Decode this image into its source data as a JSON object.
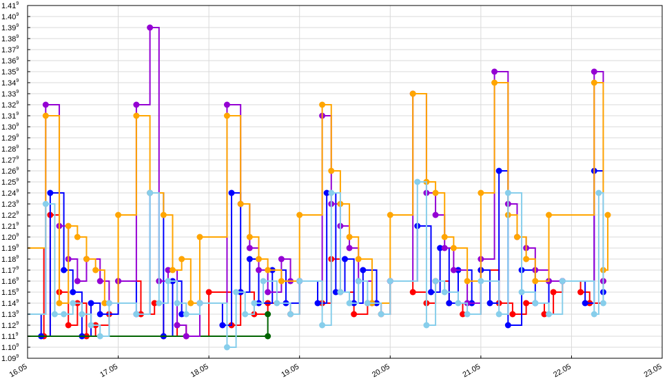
{
  "chart_data": {
    "type": "line",
    "step": "post",
    "grid": true,
    "legend": "none",
    "x_ticks": [
      "16.05",
      "17.05",
      "18.05",
      "19.05",
      "20.05",
      "21.05",
      "22.05",
      "23.05"
    ],
    "xlim": [
      0,
      7
    ],
    "y_ticks": [
      {
        "base": "1.09",
        "exp": "9"
      },
      {
        "base": "1.10",
        "exp": "9"
      },
      {
        "base": "1.11",
        "exp": "9"
      },
      {
        "base": "1.12",
        "exp": "9"
      },
      {
        "base": "1.13",
        "exp": "9"
      },
      {
        "base": "1.14",
        "exp": "9"
      },
      {
        "base": "1.15",
        "exp": "9"
      },
      {
        "base": "1.16",
        "exp": "9"
      },
      {
        "base": "1.17",
        "exp": "9"
      },
      {
        "base": "1.18",
        "exp": "9"
      },
      {
        "base": "1.19",
        "exp": "9"
      },
      {
        "base": "1.20",
        "exp": "9"
      },
      {
        "base": "1.21",
        "exp": "9"
      },
      {
        "base": "1.22",
        "exp": "9"
      },
      {
        "base": "1.23",
        "exp": "9"
      },
      {
        "base": "1.24",
        "exp": "9"
      },
      {
        "base": "1.25",
        "exp": "9"
      },
      {
        "base": "1.26",
        "exp": "9"
      },
      {
        "base": "1.27",
        "exp": "9"
      },
      {
        "base": "1.28",
        "exp": "9"
      },
      {
        "base": "1.29",
        "exp": "9"
      },
      {
        "base": "1.30",
        "exp": "9"
      },
      {
        "base": "1.31",
        "exp": "9"
      },
      {
        "base": "1.32",
        "exp": "9"
      },
      {
        "base": "1.33",
        "exp": "9"
      },
      {
        "base": "1.34",
        "exp": "9"
      },
      {
        "base": "1.35",
        "exp": "9"
      },
      {
        "base": "1.36",
        "exp": "9"
      },
      {
        "base": "1.37",
        "exp": "9"
      },
      {
        "base": "1.38",
        "exp": "9"
      },
      {
        "base": "1.39",
        "exp": "9"
      },
      {
        "base": "1.40",
        "exp": "9"
      },
      {
        "base": "1.41",
        "exp": "9"
      }
    ],
    "ylim": [
      1.09,
      1.41
    ],
    "y_multiplier_exp": 9,
    "series": [
      {
        "color": "#ff0000",
        "points": [
          [
            0,
            1.19
          ],
          [
            0.18,
            1.11
          ],
          [
            0.25,
            1.22
          ],
          [
            0.35,
            1.15
          ],
          [
            0.45,
            1.12
          ],
          [
            0.55,
            1.14
          ],
          [
            0.65,
            1.11
          ],
          [
            0.75,
            1.12
          ],
          [
            0.9,
            1.13
          ],
          [
            1.0,
            1.16
          ],
          [
            1.25,
            1.13
          ],
          [
            1.4,
            1.14
          ],
          [
            1.5,
            1.11
          ],
          [
            1.65,
            1.12
          ],
          [
            1.75,
            1.11
          ],
          [
            2.0,
            1.15
          ],
          [
            2.25,
            1.12
          ],
          [
            2.35,
            1.15
          ],
          [
            2.5,
            1.13
          ],
          [
            2.65,
            1.14
          ],
          [
            2.9,
            1.13
          ],
          [
            3.0,
            1.16
          ],
          [
            3.25,
            1.14
          ],
          [
            3.35,
            1.18
          ],
          [
            3.45,
            1.15
          ],
          [
            3.6,
            1.13
          ],
          [
            3.75,
            1.14
          ],
          [
            3.9,
            1.13
          ],
          [
            4.0,
            1.16
          ],
          [
            4.25,
            1.15
          ],
          [
            4.4,
            1.14
          ],
          [
            4.5,
            1.16
          ],
          [
            4.65,
            1.14
          ],
          [
            4.8,
            1.13
          ],
          [
            5.0,
            1.17
          ],
          [
            5.2,
            1.14
          ],
          [
            5.35,
            1.13
          ],
          [
            5.5,
            1.14
          ],
          [
            5.7,
            1.13
          ],
          [
            5.8,
            1.15
          ],
          [
            5.9,
            1.16
          ],
          [
            6.1,
            1.15
          ],
          [
            6.2,
            1.14
          ],
          [
            6.35,
            1.16
          ]
        ]
      },
      {
        "color": "#0000ff",
        "points": [
          [
            0,
            1.13
          ],
          [
            0.15,
            1.11
          ],
          [
            0.25,
            1.24
          ],
          [
            0.4,
            1.17
          ],
          [
            0.5,
            1.15
          ],
          [
            0.6,
            1.11
          ],
          [
            0.7,
            1.14
          ],
          [
            0.8,
            1.13
          ],
          [
            1.0,
            1.16
          ],
          [
            1.2,
            1.13
          ],
          [
            1.35,
            1.24
          ],
          [
            1.5,
            1.11
          ],
          [
            1.6,
            1.16
          ],
          [
            1.7,
            1.13
          ],
          [
            1.9,
            1.14
          ],
          [
            2.15,
            1.12
          ],
          [
            2.25,
            1.24
          ],
          [
            2.35,
            1.15
          ],
          [
            2.45,
            1.18
          ],
          [
            2.55,
            1.14
          ],
          [
            2.7,
            1.17
          ],
          [
            2.85,
            1.14
          ],
          [
            3.0,
            1.16
          ],
          [
            3.2,
            1.14
          ],
          [
            3.3,
            1.24
          ],
          [
            3.4,
            1.15
          ],
          [
            3.5,
            1.18
          ],
          [
            3.6,
            1.14
          ],
          [
            3.7,
            1.17
          ],
          [
            3.85,
            1.14
          ],
          [
            4.0,
            1.16
          ],
          [
            4.3,
            1.21
          ],
          [
            4.45,
            1.15
          ],
          [
            4.55,
            1.19
          ],
          [
            4.65,
            1.14
          ],
          [
            4.75,
            1.17
          ],
          [
            4.9,
            1.14
          ],
          [
            5.0,
            1.17
          ],
          [
            5.1,
            1.14
          ],
          [
            5.2,
            1.26
          ],
          [
            5.3,
            1.12
          ],
          [
            5.45,
            1.17
          ],
          [
            5.6,
            1.14
          ],
          [
            5.75,
            1.16
          ],
          [
            5.9,
            1.16
          ],
          [
            6.15,
            1.14
          ],
          [
            6.25,
            1.26
          ],
          [
            6.35,
            1.15
          ]
        ]
      },
      {
        "color": "#006400",
        "points": [
          [
            0,
            1.11
          ],
          [
            2.65,
            1.11
          ],
          [
            2.65,
            1.13
          ]
        ]
      },
      {
        "color": "#9400d3",
        "points": [
          [
            0,
            1.13
          ],
          [
            0.2,
            1.32
          ],
          [
            0.35,
            1.21
          ],
          [
            0.45,
            1.18
          ],
          [
            0.55,
            1.16
          ],
          [
            0.65,
            1.18
          ],
          [
            0.8,
            1.16
          ],
          [
            0.9,
            1.14
          ],
          [
            1.0,
            1.16
          ],
          [
            1.2,
            1.32
          ],
          [
            1.35,
            1.39
          ],
          [
            1.45,
            1.16
          ],
          [
            1.55,
            1.17
          ],
          [
            1.65,
            1.12
          ],
          [
            1.75,
            1.11
          ],
          [
            1.9,
            1.14
          ],
          [
            2.2,
            1.32
          ],
          [
            2.35,
            1.23
          ],
          [
            2.45,
            1.19
          ],
          [
            2.55,
            1.17
          ],
          [
            2.65,
            1.15
          ],
          [
            2.8,
            1.18
          ],
          [
            2.9,
            1.16
          ],
          [
            3.0,
            1.16
          ],
          [
            3.25,
            1.31
          ],
          [
            3.35,
            1.23
          ],
          [
            3.45,
            1.21
          ],
          [
            3.55,
            1.19
          ],
          [
            3.65,
            1.16
          ],
          [
            3.8,
            1.14
          ],
          [
            4.0,
            1.16
          ],
          [
            4.25,
            1.33
          ],
          [
            4.4,
            1.24
          ],
          [
            4.5,
            1.22
          ],
          [
            4.6,
            1.19
          ],
          [
            4.7,
            1.17
          ],
          [
            4.85,
            1.14
          ],
          [
            5.0,
            1.18
          ],
          [
            5.15,
            1.35
          ],
          [
            5.3,
            1.23
          ],
          [
            5.4,
            1.2
          ],
          [
            5.5,
            1.19
          ],
          [
            5.6,
            1.17
          ],
          [
            5.75,
            1.16
          ],
          [
            5.9,
            1.16
          ],
          [
            6.25,
            1.35
          ],
          [
            6.35,
            1.16
          ]
        ]
      },
      {
        "color": "#ffa500",
        "points": [
          [
            0,
            1.19
          ],
          [
            0.2,
            1.31
          ],
          [
            0.35,
            1.14
          ],
          [
            0.45,
            1.21
          ],
          [
            0.55,
            1.2
          ],
          [
            0.65,
            1.18
          ],
          [
            0.75,
            1.17
          ],
          [
            0.85,
            1.14
          ],
          [
            1.0,
            1.22
          ],
          [
            1.2,
            1.31
          ],
          [
            1.35,
            1.24
          ],
          [
            1.5,
            1.22
          ],
          [
            1.6,
            1.17
          ],
          [
            1.7,
            1.18
          ],
          [
            1.8,
            1.14
          ],
          [
            1.9,
            1.2
          ],
          [
            2.2,
            1.31
          ],
          [
            2.35,
            1.23
          ],
          [
            2.45,
            1.2
          ],
          [
            2.55,
            1.18
          ],
          [
            2.65,
            1.17
          ],
          [
            2.8,
            1.16
          ],
          [
            3.0,
            1.22
          ],
          [
            3.25,
            1.32
          ],
          [
            3.35,
            1.26
          ],
          [
            3.45,
            1.23
          ],
          [
            3.55,
            1.2
          ],
          [
            3.65,
            1.18
          ],
          [
            3.8,
            1.14
          ],
          [
            4.0,
            1.22
          ],
          [
            4.25,
            1.33
          ],
          [
            4.4,
            1.25
          ],
          [
            4.5,
            1.24
          ],
          [
            4.6,
            1.2
          ],
          [
            4.7,
            1.19
          ],
          [
            4.85,
            1.16
          ],
          [
            5.0,
            1.24
          ],
          [
            5.15,
            1.34
          ],
          [
            5.3,
            1.22
          ],
          [
            5.4,
            1.2
          ],
          [
            5.5,
            1.18
          ],
          [
            5.6,
            1.16
          ],
          [
            5.75,
            1.22
          ],
          [
            6.25,
            1.34
          ],
          [
            6.35,
            1.17
          ],
          [
            6.4,
            1.22
          ]
        ]
      },
      {
        "color": "#87ceeb",
        "points": [
          [
            0,
            1.13
          ],
          [
            0.2,
            1.23
          ],
          [
            0.3,
            1.13
          ],
          [
            0.4,
            1.13
          ],
          [
            0.5,
            1.14
          ],
          [
            0.6,
            1.13
          ],
          [
            0.7,
            1.12
          ],
          [
            0.8,
            1.11
          ],
          [
            0.9,
            1.14
          ],
          [
            1.2,
            1.13
          ],
          [
            1.35,
            1.24
          ],
          [
            1.45,
            1.14
          ],
          [
            1.55,
            1.16
          ],
          [
            1.65,
            1.14
          ],
          [
            1.75,
            1.13
          ],
          [
            1.9,
            1.14
          ],
          [
            2.2,
            1.1
          ],
          [
            2.3,
            1.15
          ],
          [
            2.4,
            1.13
          ],
          [
            2.5,
            1.14
          ],
          [
            2.6,
            1.16
          ],
          [
            2.75,
            1.14
          ],
          [
            2.9,
            1.13
          ],
          [
            3.0,
            1.16
          ],
          [
            3.25,
            1.12
          ],
          [
            3.35,
            1.24
          ],
          [
            3.45,
            1.15
          ],
          [
            3.55,
            1.14
          ],
          [
            3.65,
            1.16
          ],
          [
            3.75,
            1.14
          ],
          [
            3.9,
            1.13
          ],
          [
            4.0,
            1.16
          ],
          [
            4.3,
            1.25
          ],
          [
            4.4,
            1.12
          ],
          [
            4.5,
            1.16
          ],
          [
            4.6,
            1.15
          ],
          [
            4.75,
            1.14
          ],
          [
            4.85,
            1.13
          ],
          [
            5.0,
            1.16
          ],
          [
            5.2,
            1.13
          ],
          [
            5.3,
            1.24
          ],
          [
            5.45,
            1.15
          ],
          [
            5.6,
            1.14
          ],
          [
            5.75,
            1.13
          ],
          [
            5.9,
            1.16
          ],
          [
            6.25,
            1.13
          ],
          [
            6.3,
            1.24
          ],
          [
            6.35,
            1.14
          ]
        ]
      }
    ]
  }
}
